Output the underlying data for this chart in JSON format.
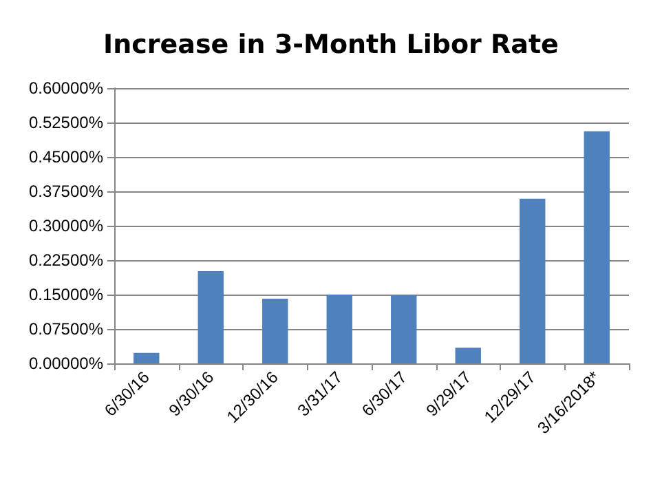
{
  "chart_data": {
    "type": "bar",
    "title": "Increase in 3-Month Libor Rate",
    "categories": [
      "6/30/16",
      "9/30/16",
      "12/30/16",
      "3/31/17",
      "6/30/17",
      "9/29/17",
      "12/29/17",
      "3/16/2018*"
    ],
    "values": [
      0.023,
      0.201,
      0.141,
      0.15,
      0.149,
      0.034,
      0.359,
      0.506
    ],
    "color": "#4f81bd",
    "ylim": [
      0,
      0.6
    ],
    "yticks": [
      {
        "value": 0,
        "label": "0.00000%"
      },
      {
        "value": 0.075,
        "label": "0.07500%"
      },
      {
        "value": 0.15,
        "label": "0.15000%"
      },
      {
        "value": 0.225,
        "label": "0.22500%"
      },
      {
        "value": 0.3,
        "label": "0.30000%"
      },
      {
        "value": 0.375,
        "label": "0.37500%"
      },
      {
        "value": 0.45,
        "label": "0.45000%"
      },
      {
        "value": 0.525,
        "label": "0.52500%"
      },
      {
        "value": 0.6,
        "label": "0.60000%"
      }
    ],
    "grid": "y"
  }
}
